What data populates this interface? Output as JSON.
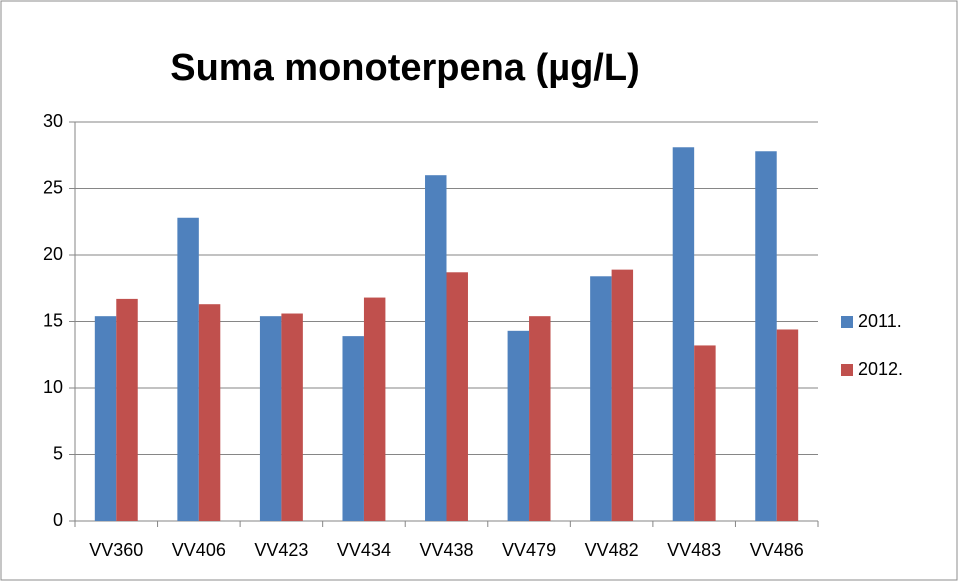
{
  "chart_data": {
    "type": "bar",
    "title": "Suma monoterpena (µg/L)",
    "categories": [
      "VV360",
      "VV406",
      "VV423",
      "VV434",
      "VV438",
      "VV479",
      "VV482",
      "VV483",
      "VV486"
    ],
    "series": [
      {
        "name": "2011.",
        "color": "#4f81bd",
        "values": [
          15.4,
          22.8,
          15.4,
          13.9,
          26.0,
          14.3,
          18.4,
          28.1,
          27.8
        ]
      },
      {
        "name": "2012.",
        "color": "#c0504d",
        "values": [
          16.7,
          16.3,
          15.6,
          16.8,
          18.7,
          15.4,
          18.9,
          13.2,
          14.4
        ]
      }
    ],
    "ylim": [
      0,
      30
    ],
    "yticks": [
      0,
      5,
      10,
      15,
      20,
      25,
      30
    ],
    "grid": true,
    "legend": "right"
  }
}
